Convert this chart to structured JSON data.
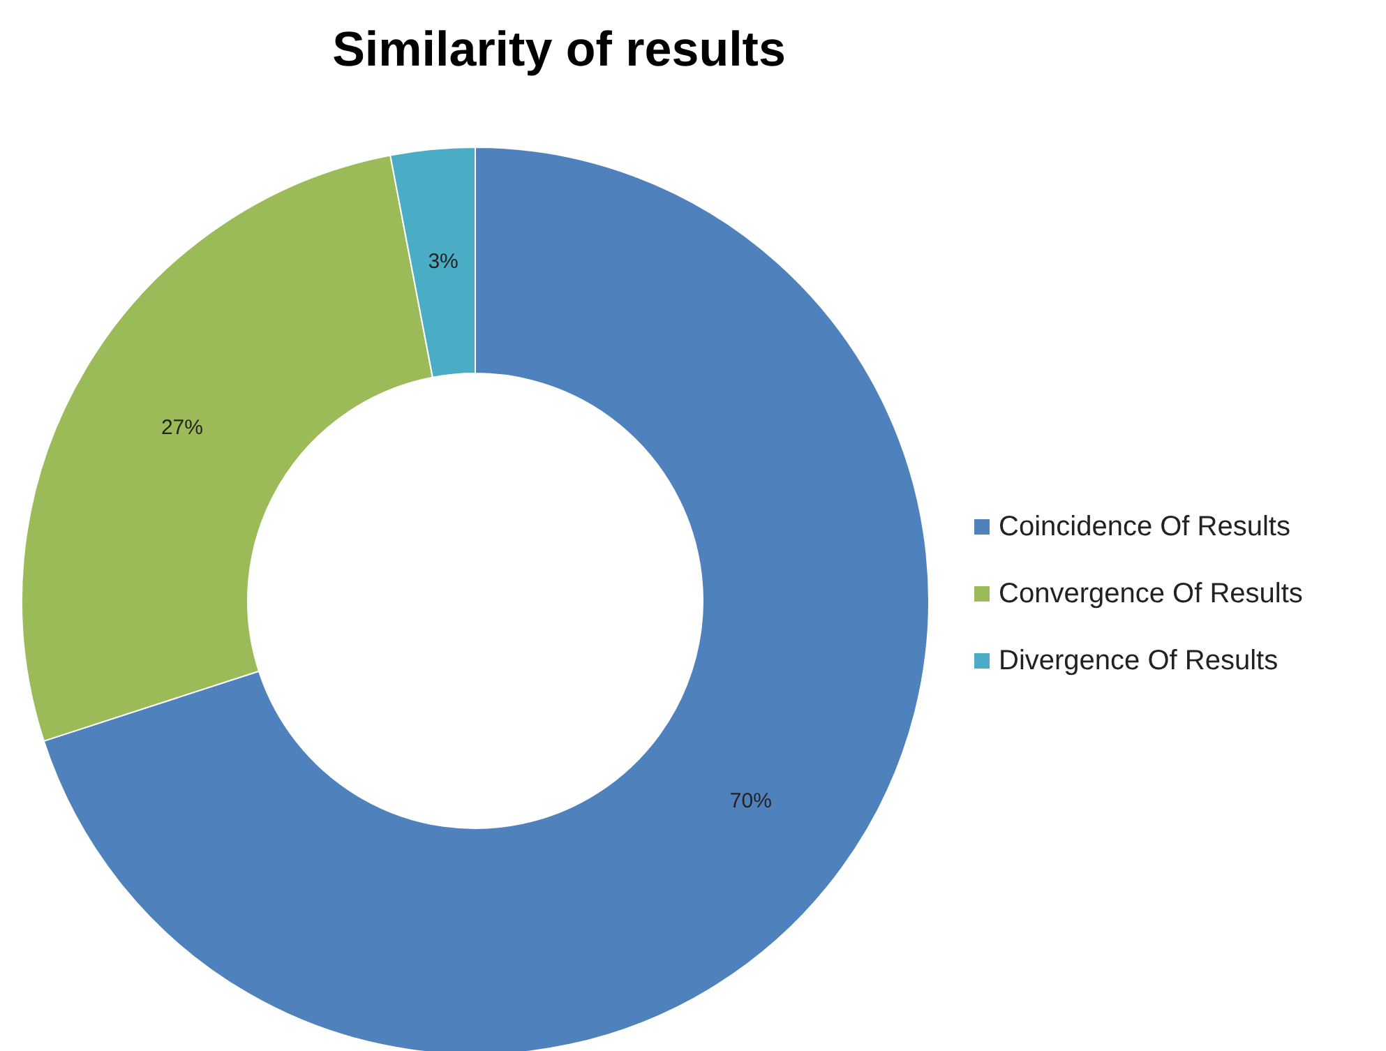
{
  "chart_data": {
    "type": "donut",
    "title": "Similarity of results",
    "categories": [
      "Coincidence Of Results",
      "Convergence Of Results",
      "Divergence Of Results"
    ],
    "values": [
      70,
      27,
      3
    ],
    "colors": [
      "#4f81bd",
      "#9bbb59",
      "#4bacc6"
    ],
    "value_labels": [
      "70%",
      "27%",
      "3%"
    ],
    "legend": "right"
  }
}
